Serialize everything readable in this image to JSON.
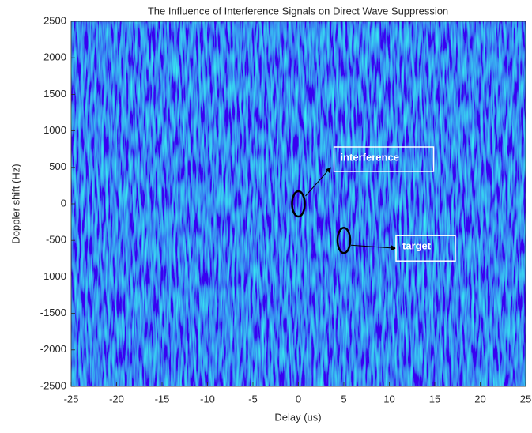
{
  "chart_data": {
    "type": "heatmap",
    "title": "The Influence of Interference Signals on Direct Wave Suppression",
    "x_label": "Delay (us)",
    "y_label": "Doppler shift (Hz)",
    "xlim": [
      -25,
      25
    ],
    "xticks": [
      -25,
      -20,
      -15,
      -10,
      -5,
      0,
      5,
      10,
      15,
      20,
      25
    ],
    "ylim": [
      -2500,
      2500
    ],
    "yticks": [
      -2500,
      -2000,
      -1500,
      -1000,
      -500,
      0,
      500,
      1000,
      1500,
      2000,
      2500
    ],
    "annotations": [
      {
        "text": "interference",
        "x": 0,
        "y": 0
      },
      {
        "text": "target",
        "x": 5,
        "y": -500
      }
    ]
  }
}
